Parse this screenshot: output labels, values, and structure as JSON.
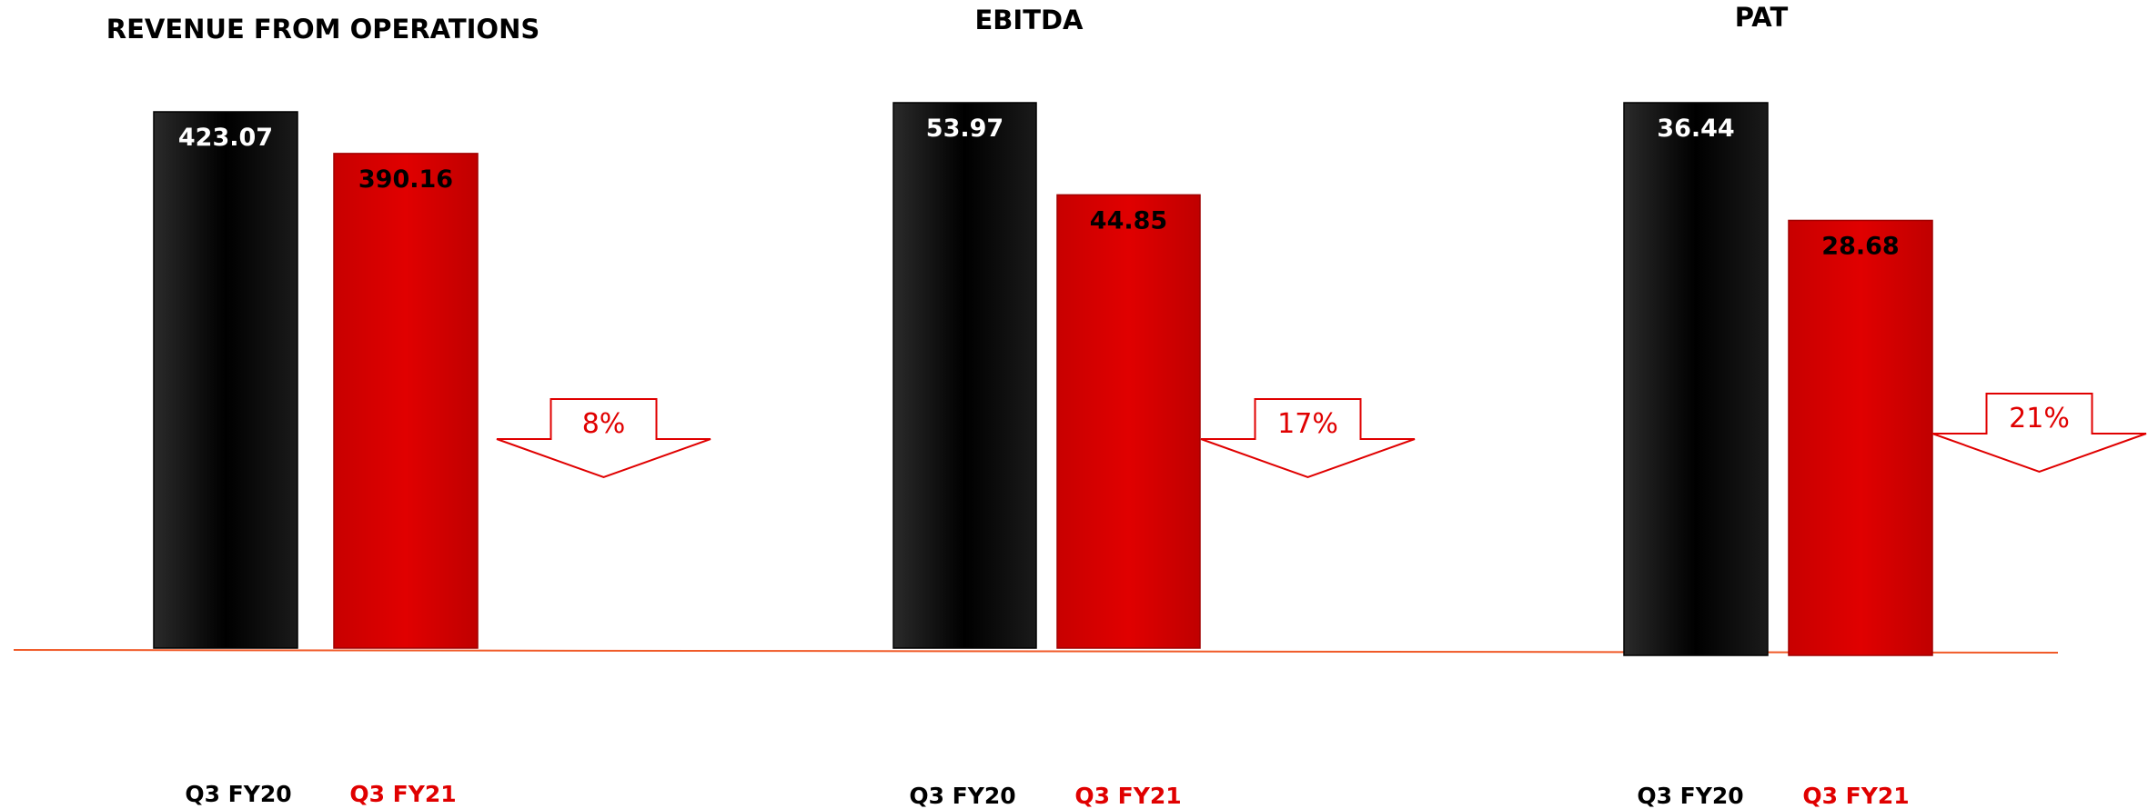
{
  "chart_data": [
    {
      "type": "bar",
      "title": "REVENUE FROM OPERATIONS",
      "categories": [
        "Q3 FY20",
        "Q3 FY21"
      ],
      "values": [
        423.07,
        390.16
      ],
      "value_labels": [
        "423.07",
        "390.16"
      ],
      "change_label": "8%",
      "change_direction": "down",
      "colors": [
        "#000000",
        "#d90000"
      ]
    },
    {
      "type": "bar",
      "title": "EBITDA",
      "categories": [
        "Q3 FY20",
        "Q3 FY21"
      ],
      "values": [
        53.97,
        44.85
      ],
      "value_labels": [
        "53.97",
        "44.85"
      ],
      "change_label": "17%",
      "change_direction": "down",
      "colors": [
        "#000000",
        "#d90000"
      ]
    },
    {
      "type": "bar",
      "title": "PAT",
      "categories": [
        "Q3 FY20",
        "Q3 FY21"
      ],
      "values": [
        36.44,
        28.68
      ],
      "value_labels": [
        "36.44",
        "28.68"
      ],
      "change_label": "21%",
      "change_direction": "down",
      "colors": [
        "#000000",
        "#d90000"
      ]
    }
  ],
  "colors": {
    "baseline": "#f05a28",
    "category_fy20": "#000000",
    "category_fy21": "#e00000",
    "arrow": "#e00000"
  }
}
